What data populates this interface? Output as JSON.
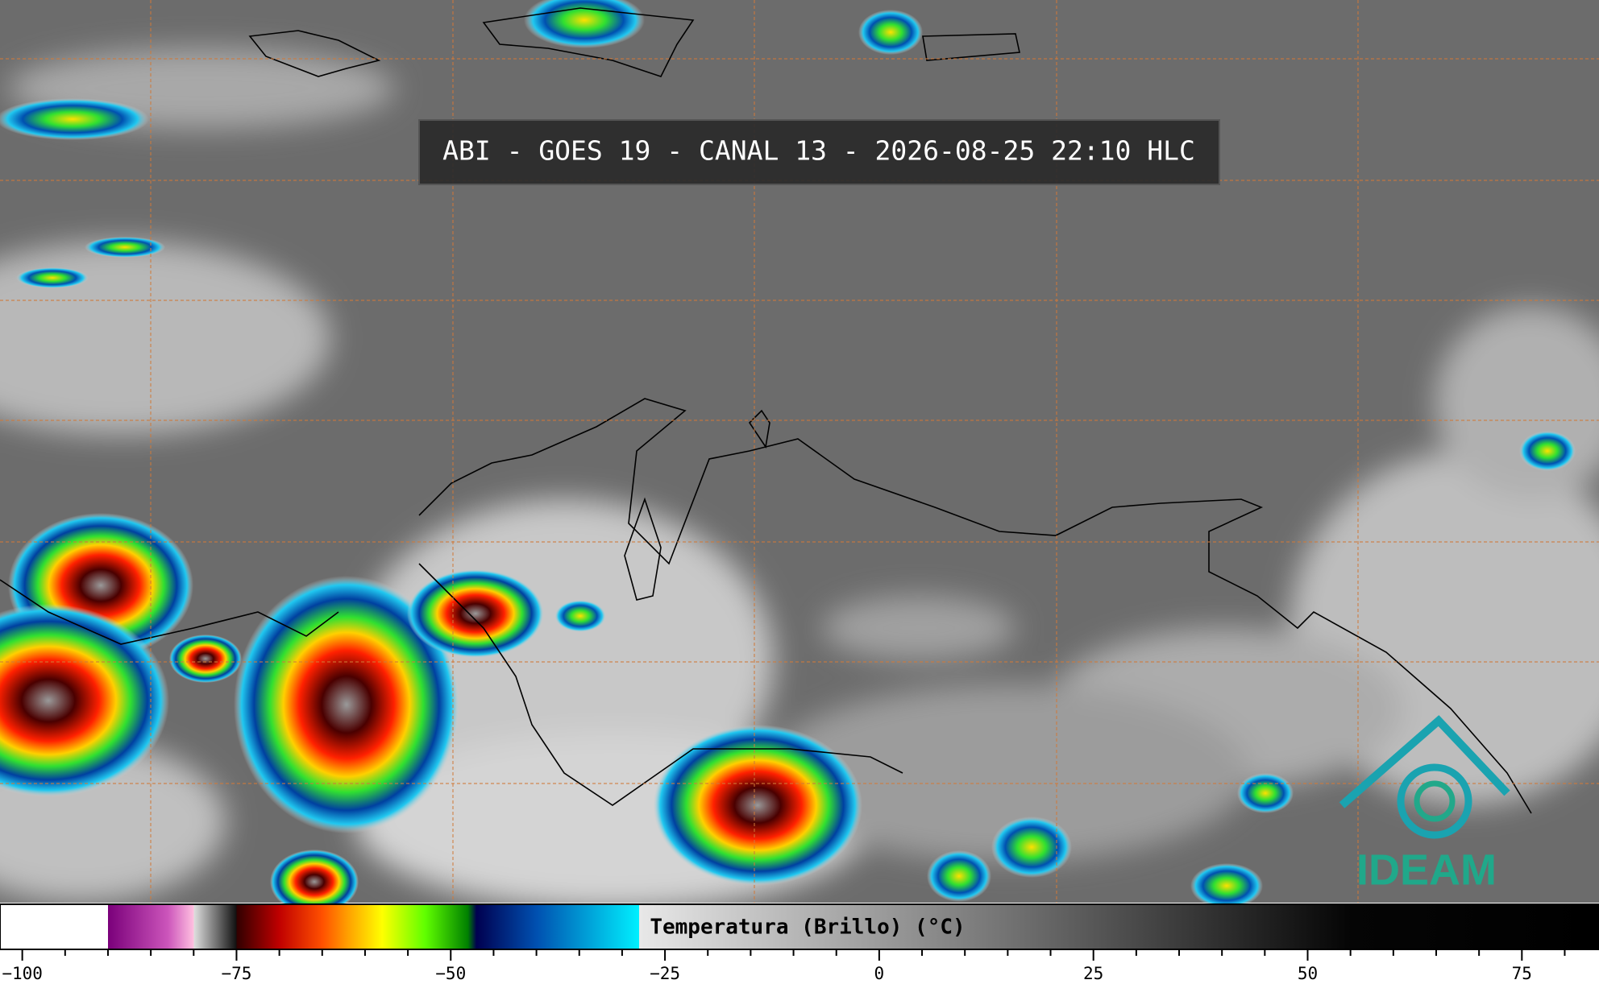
{
  "title": "ABI - GOES 19 - CANAL 13 - 2026-08-25 22:10 HLC",
  "logo": "IDEAM",
  "colorbar": {
    "label": "Temperatura (Brillo) (°C)",
    "xlim": [
      -102.6,
      84
    ],
    "xticks": [
      {
        "value": -100,
        "label": "−100"
      },
      {
        "value": -75,
        "label": "−75"
      },
      {
        "value": -50,
        "label": "−50"
      },
      {
        "value": -25,
        "label": "−25"
      },
      0,
      25,
      50,
      75
    ],
    "minor_xticks": [
      -95,
      -90,
      -85,
      -80,
      -70,
      -65,
      -60,
      -55,
      -45,
      -40,
      -35,
      -30,
      -20,
      -15,
      -10,
      -5,
      5,
      10,
      15,
      20,
      30,
      35,
      40,
      45,
      55,
      60,
      65,
      70,
      80
    ],
    "colorscale": [
      {
        "value": -102.6,
        "color": "#ffffff"
      },
      {
        "value": -90,
        "color": "#ffffff"
      },
      {
        "value": -90,
        "color": "#7a007a"
      },
      {
        "value": -83,
        "color": "#cc55bb"
      },
      {
        "value": -80,
        "color": "#ffc0e0"
      },
      {
        "value": -80,
        "color": "#e0e0e0"
      },
      {
        "value": -75,
        "color": "#101010"
      },
      {
        "value": -75,
        "color": "#300000"
      },
      {
        "value": -70,
        "color": "#c00000"
      },
      {
        "value": -65,
        "color": "#ff5000"
      },
      {
        "value": -62,
        "color": "#ffa000"
      },
      {
        "value": -58,
        "color": "#ffff00"
      },
      {
        "value": -53,
        "color": "#60ff00"
      },
      {
        "value": -48,
        "color": "#008000"
      },
      {
        "value": -47,
        "color": "#000050"
      },
      {
        "value": -40,
        "color": "#0050b0"
      },
      {
        "value": -28,
        "color": "#00f0ff"
      },
      {
        "value": -28,
        "color": "#e8e8e8"
      },
      {
        "value": 55,
        "color": "#050505"
      },
      {
        "value": 84,
        "color": "#000000"
      }
    ]
  }
}
